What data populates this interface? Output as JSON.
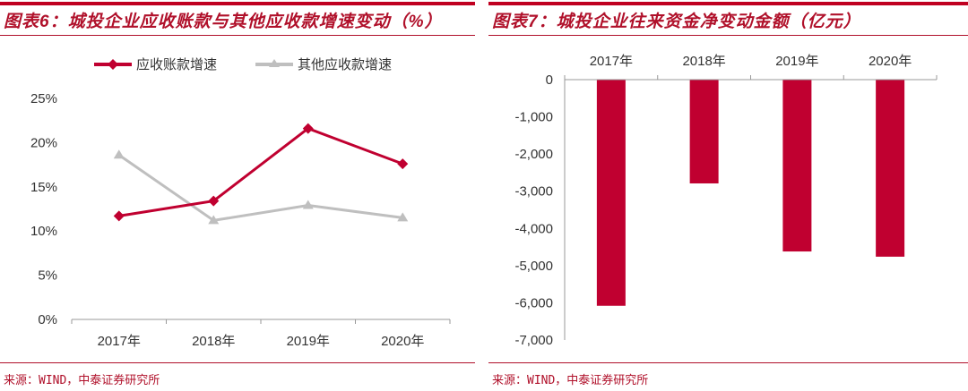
{
  "chart_data": [
    {
      "type": "line",
      "title": "图表6：城投企业应收账款与其他应收款增速变动（%）",
      "source": "来源：WIND，中泰证券研究所",
      "categories": [
        "2017年",
        "2018年",
        "2019年",
        "2020年"
      ],
      "y_ticks": [
        "0%",
        "5%",
        "10%",
        "15%",
        "20%",
        "25%"
      ],
      "ylim": [
        0,
        25
      ],
      "legend_position": "top",
      "grid": false,
      "series": [
        {
          "name": "应收账款增速",
          "color": "#c00030",
          "values": [
            11.7,
            13.4,
            21.6,
            17.6
          ]
        },
        {
          "name": "其他应收款增速",
          "color": "#bfbfbf",
          "values": [
            18.6,
            11.2,
            12.9,
            11.5
          ]
        }
      ]
    },
    {
      "type": "bar",
      "title": "图表7：城投企业往来资金净变动金额（亿元）",
      "source": "来源：WIND，中泰证券研究所",
      "categories": [
        "2017年",
        "2018年",
        "2019年",
        "2020年"
      ],
      "y_ticks": [
        "0",
        "-1,000",
        "-2,000",
        "-3,000",
        "-4,000",
        "-5,000",
        "-6,000",
        "-7,000"
      ],
      "ylim": [
        -7000,
        0
      ],
      "grid": false,
      "color": "#c00030",
      "values": [
        -6080,
        -2790,
        -4620,
        -4760
      ]
    }
  ]
}
